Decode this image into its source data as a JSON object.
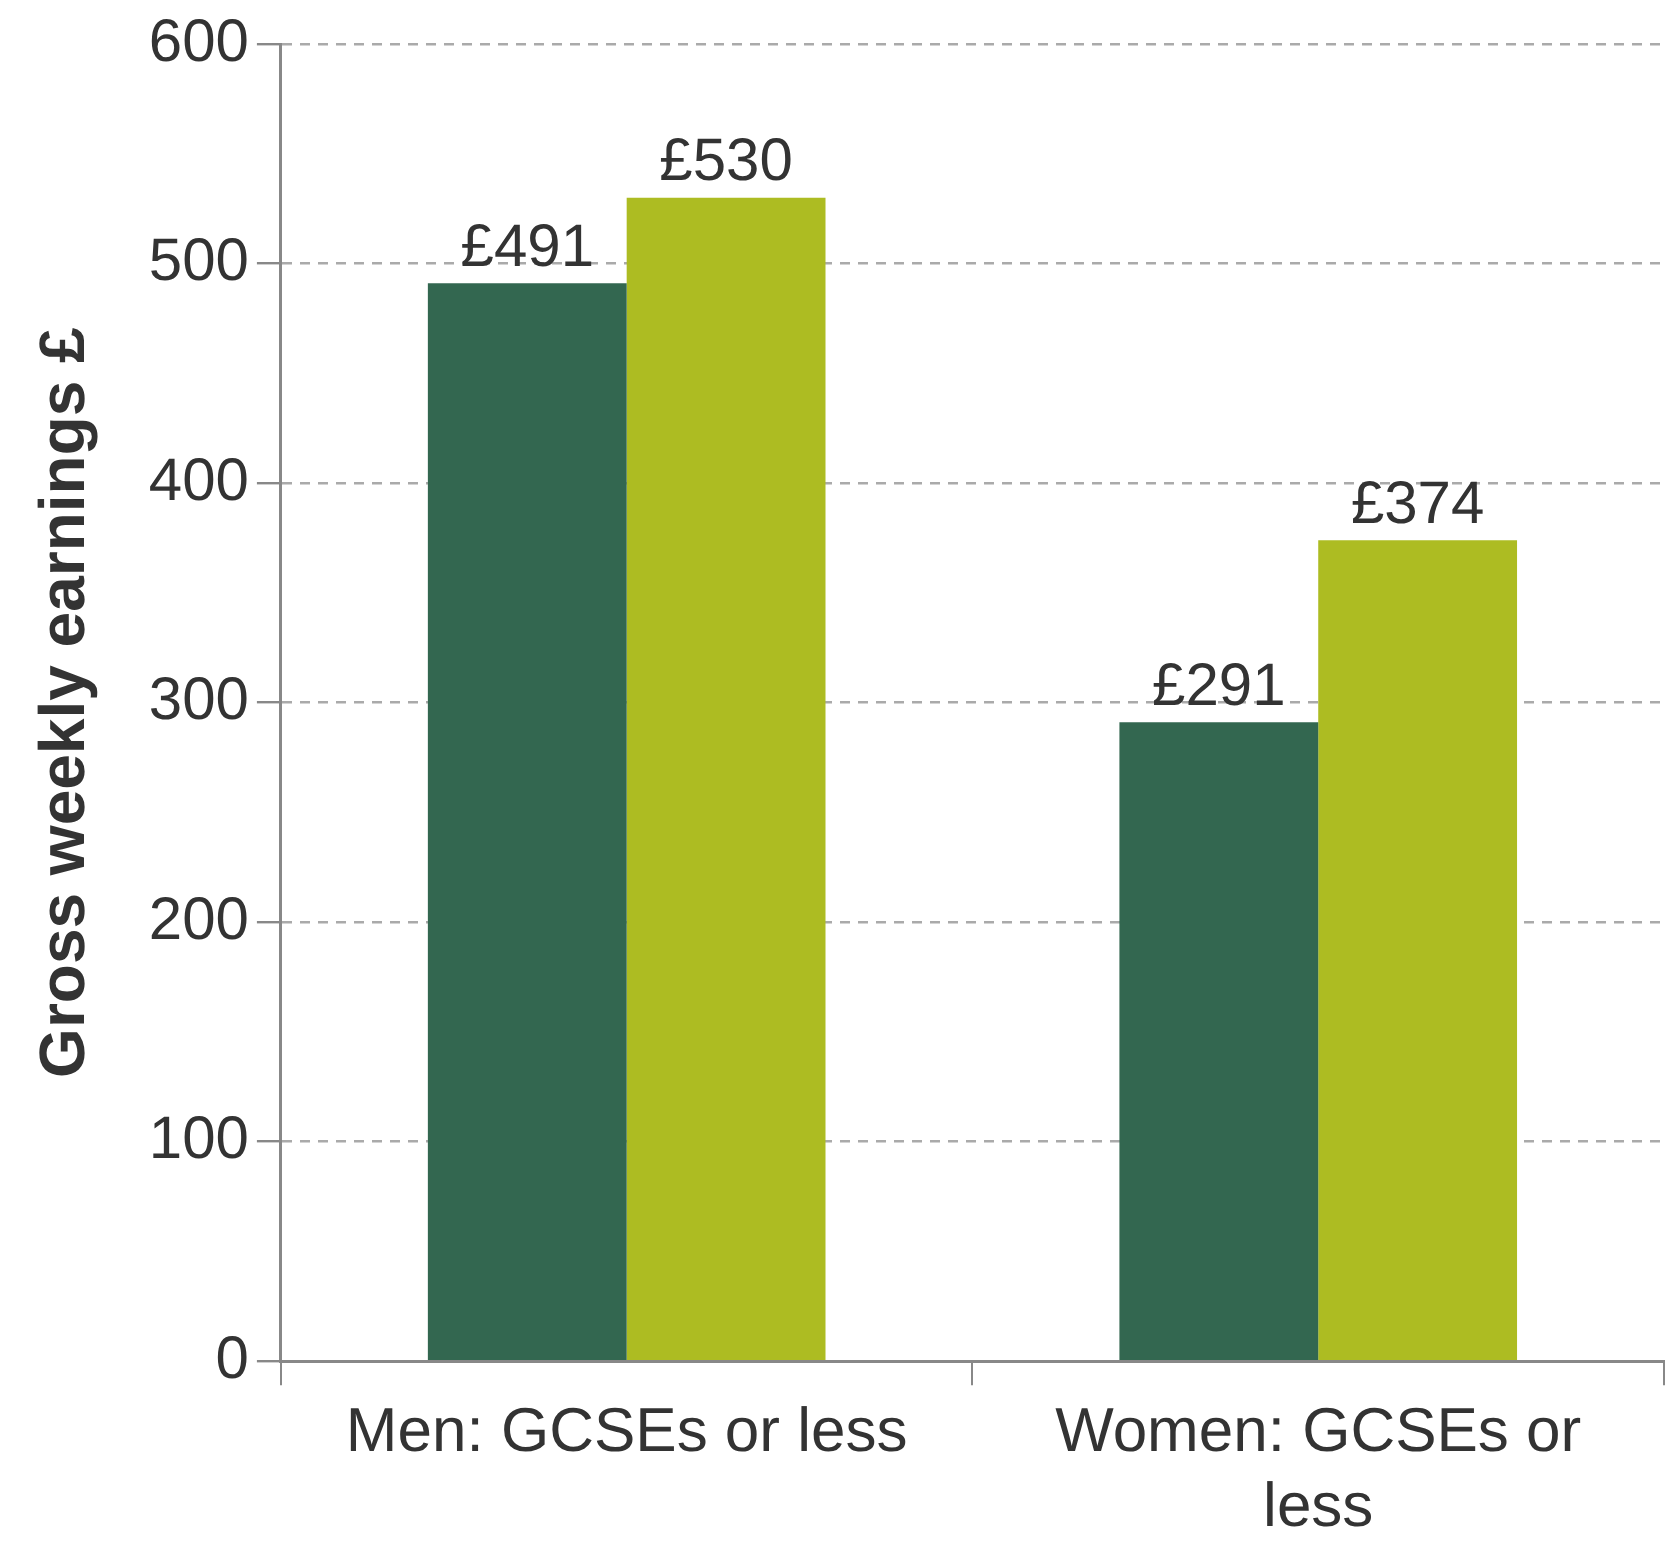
{
  "chart_data": {
    "type": "bar",
    "ylabel": "Gross weekly earnings £",
    "categories": [
      "Men: GCSEs or less",
      "Women: GCSEs or less"
    ],
    "series": [
      {
        "color": "#336750",
        "values": [
          491,
          291
        ],
        "value_labels": [
          "£491",
          "£291"
        ]
      },
      {
        "color": "#adbc22",
        "values": [
          530,
          374
        ],
        "value_labels": [
          "£530",
          "£374"
        ]
      }
    ],
    "ylim": [
      0,
      600
    ],
    "yticks": [
      0,
      100,
      200,
      300,
      400,
      500,
      600
    ],
    "grid": "y",
    "legend": false
  }
}
